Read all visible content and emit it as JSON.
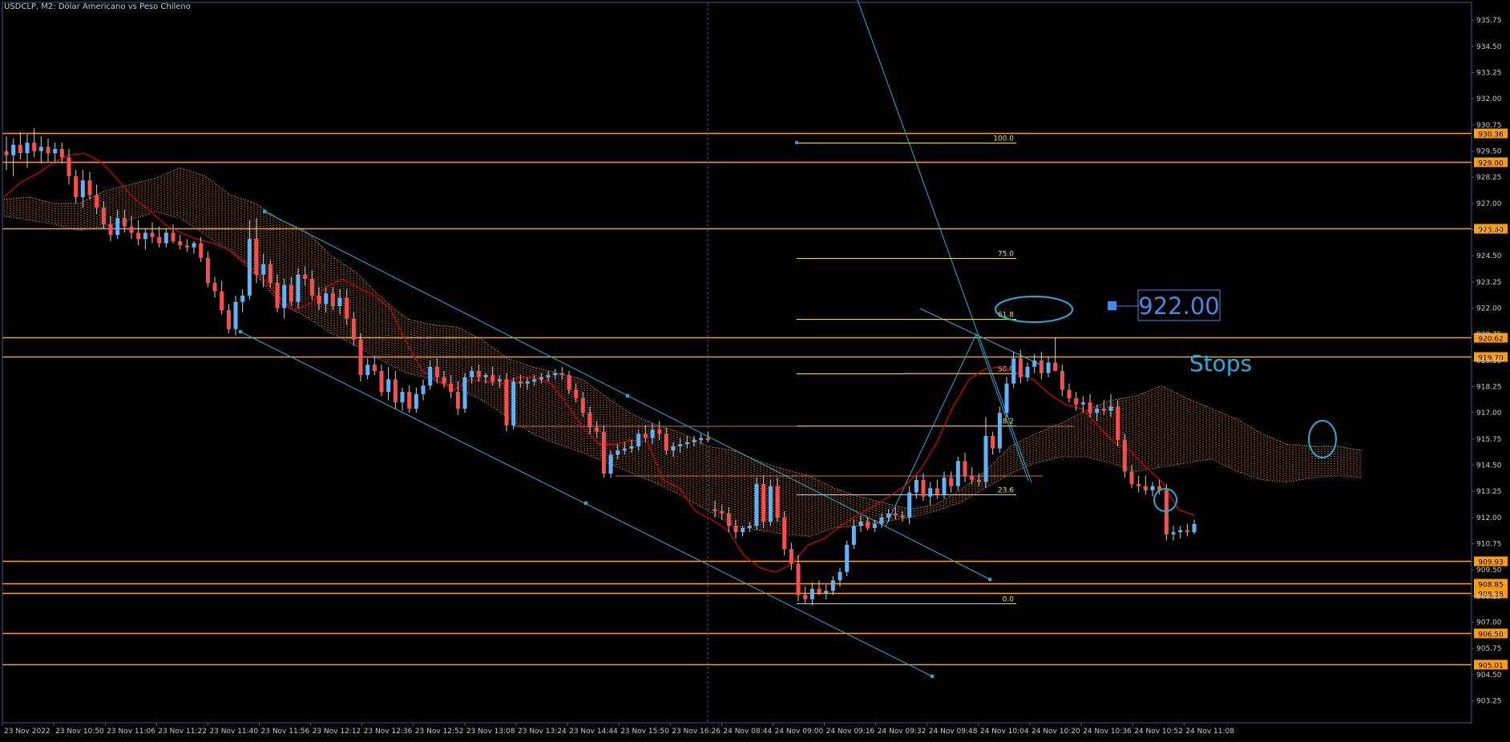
{
  "header": {
    "title": "USDCLP, M2:  Dólar Americano vs Peso Chileno"
  },
  "colors": {
    "background": "#000000",
    "grid_frame": "#3a5a8a",
    "text": "#c8c8c8",
    "bull": "#5ab4ff",
    "bear": "#ff4d4d",
    "tenkan": "#d40000",
    "level": "#ff9e00",
    "fib": "#e8e800",
    "channel": "#1ab0e0",
    "cloud": "#d08a4a",
    "price_tag_bg": "#ff9e00"
  },
  "annotations": {
    "big_price": "922.00",
    "stops": "Stops"
  },
  "chart_data": {
    "type": "candlestick",
    "symbol": "USDCLP",
    "timeframe": "M2",
    "y_axis_ticks": [
      "935.75",
      "934.50",
      "933.25",
      "932.00",
      "930.75",
      "929.50",
      "928.25",
      "927.00",
      "925.75",
      "924.50",
      "923.25",
      "922.00",
      "920.75",
      "919.50",
      "918.25",
      "917.00",
      "915.75",
      "914.50",
      "913.25",
      "912.00",
      "910.75",
      "909.50",
      "908.25",
      "907.00",
      "905.75",
      "904.50",
      "903.25"
    ],
    "ylim": [
      902.2,
      936.6
    ],
    "x_axis_labels": [
      "23 Nov 2022",
      "23 Nov 10:50",
      "23 Nov 11:06",
      "23 Nov 11:22",
      "23 Nov 11:40",
      "23 Nov 11:56",
      "23 Nov 12:12",
      "23 Nov 12:36",
      "23 Nov 12:52",
      "23 Nov 13:08",
      "23 Nov 13:24",
      "23 Nov 14:44",
      "23 Nov 15:50",
      "23 Nov 16:26",
      "24 Nov 08:44",
      "24 Nov 09:00",
      "24 Nov 09:16",
      "24 Nov 09:32",
      "24 Nov 09:48",
      "24 Nov 10:04",
      "24 Nov 10:20",
      "24 Nov 10:36",
      "24 Nov 10:52",
      "24 Nov 11:08"
    ],
    "horizontal_levels": [
      "930.36",
      "929.00",
      "925.80",
      "920.62",
      "919.70",
      "909.93",
      "908.85",
      "908.38",
      "906.50",
      "905.01"
    ],
    "fibonacci": [
      {
        "label": "100.0",
        "price": 929.9
      },
      {
        "label": "75.0",
        "price": 924.4
      },
      {
        "label": "61.8",
        "price": 921.5
      },
      {
        "label": "50.0",
        "price": 918.9
      },
      {
        "label": "38.2",
        "price": 916.4
      },
      {
        "label": "23.6",
        "price": 913.1
      },
      {
        "label": "0.0",
        "price": 907.9
      }
    ],
    "candles": [
      [
        929.5,
        930.2,
        928.6,
        929.3
      ],
      [
        929.3,
        930.1,
        928.3,
        929.8
      ],
      [
        929.8,
        930.4,
        929.1,
        929.4
      ],
      [
        929.4,
        930.3,
        928.7,
        929.9
      ],
      [
        929.9,
        930.6,
        929.2,
        929.5
      ],
      [
        929.5,
        930.2,
        928.9,
        929.7
      ],
      [
        929.7,
        930.1,
        929.0,
        929.4
      ],
      [
        929.4,
        929.9,
        928.9,
        929.6
      ],
      [
        929.6,
        929.9,
        928.9,
        929.2
      ],
      [
        929.2,
        929.6,
        927.9,
        928.3
      ],
      [
        928.3,
        928.6,
        927.0,
        927.3
      ],
      [
        927.3,
        928.6,
        926.8,
        928.1
      ],
      [
        928.1,
        928.5,
        927.2,
        927.4
      ],
      [
        927.4,
        927.9,
        926.5,
        926.8
      ],
      [
        926.8,
        927.1,
        925.8,
        926.0
      ],
      [
        926.0,
        926.4,
        925.2,
        925.5
      ],
      [
        925.5,
        926.7,
        925.3,
        926.3
      ],
      [
        926.3,
        926.7,
        925.6,
        925.9
      ],
      [
        925.9,
        926.4,
        925.3,
        925.6
      ],
      [
        925.6,
        926.2,
        925.0,
        925.3
      ],
      [
        925.3,
        925.8,
        924.8,
        925.6
      ],
      [
        925.6,
        926.1,
        925.1,
        925.4
      ],
      [
        925.4,
        925.9,
        924.9,
        925.1
      ],
      [
        925.1,
        925.8,
        924.9,
        925.6
      ],
      [
        925.6,
        926.0,
        925.1,
        925.2
      ],
      [
        925.2,
        925.5,
        924.8,
        925.0
      ],
      [
        925.0,
        925.3,
        924.7,
        924.9
      ],
      [
        924.9,
        925.2,
        924.6,
        925.1
      ],
      [
        925.1,
        925.4,
        924.2,
        924.4
      ],
      [
        924.4,
        924.7,
        923.0,
        923.2
      ],
      [
        923.2,
        923.5,
        922.5,
        922.8
      ],
      [
        922.8,
        923.3,
        921.7,
        921.9
      ],
      [
        921.9,
        922.2,
        920.8,
        921.0
      ],
      [
        921.0,
        922.6,
        920.7,
        922.3
      ],
      [
        922.3,
        922.9,
        921.8,
        922.6
      ],
      [
        922.6,
        926.2,
        922.4,
        925.3
      ],
      [
        925.3,
        926.3,
        923.2,
        923.6
      ],
      [
        923.6,
        924.6,
        923.0,
        924.1
      ],
      [
        924.1,
        924.3,
        923.0,
        923.2
      ],
      [
        923.2,
        923.6,
        921.8,
        922.0
      ],
      [
        922.0,
        923.4,
        921.5,
        923.1
      ],
      [
        923.1,
        923.5,
        922.1,
        922.3
      ],
      [
        922.3,
        923.9,
        922.0,
        923.6
      ],
      [
        923.6,
        924.0,
        923.1,
        923.4
      ],
      [
        923.4,
        923.8,
        922.4,
        922.6
      ],
      [
        922.6,
        923.0,
        921.9,
        922.2
      ],
      [
        922.2,
        923.0,
        921.8,
        922.7
      ],
      [
        922.7,
        923.0,
        921.9,
        922.1
      ],
      [
        922.1,
        922.9,
        921.7,
        922.5
      ],
      [
        922.5,
        922.9,
        921.2,
        921.5
      ],
      [
        921.5,
        921.8,
        920.2,
        920.5
      ],
      [
        920.5,
        920.8,
        918.5,
        918.8
      ],
      [
        918.8,
        919.6,
        918.6,
        919.3
      ],
      [
        919.3,
        919.7,
        918.8,
        919.0
      ],
      [
        919.0,
        919.3,
        917.8,
        918.0
      ],
      [
        918.0,
        919.2,
        917.6,
        918.6
      ],
      [
        918.6,
        919.0,
        917.2,
        917.5
      ],
      [
        917.5,
        918.2,
        917.1,
        918.0
      ],
      [
        918.0,
        918.3,
        917.0,
        917.2
      ],
      [
        917.2,
        918.2,
        917.0,
        917.9
      ],
      [
        917.9,
        918.6,
        917.6,
        918.3
      ],
      [
        918.3,
        919.5,
        918.1,
        919.2
      ],
      [
        919.2,
        919.6,
        918.4,
        918.7
      ],
      [
        918.7,
        919.0,
        918.2,
        918.4
      ],
      [
        918.4,
        918.8,
        917.7,
        918.0
      ],
      [
        918.0,
        918.5,
        916.9,
        917.2
      ],
      [
        917.2,
        918.9,
        917.0,
        918.7
      ],
      [
        918.7,
        919.2,
        918.4,
        919.0
      ],
      [
        919.0,
        919.3,
        918.5,
        918.7
      ],
      [
        918.7,
        918.9,
        918.4,
        918.8
      ],
      [
        918.8,
        919.2,
        918.3,
        918.5
      ],
      [
        918.5,
        918.8,
        918.2,
        918.6
      ],
      [
        918.6,
        918.9,
        916.1,
        916.4
      ],
      [
        916.4,
        918.7,
        916.2,
        918.5
      ],
      [
        918.5,
        918.8,
        918.2,
        918.4
      ],
      [
        918.4,
        918.7,
        918.1,
        918.5
      ],
      [
        918.5,
        918.8,
        918.3,
        918.6
      ],
      [
        918.6,
        918.9,
        918.4,
        918.7
      ],
      [
        918.7,
        919.0,
        918.5,
        918.8
      ],
      [
        918.8,
        919.1,
        918.6,
        918.9
      ],
      [
        918.9,
        919.2,
        918.6,
        918.8
      ],
      [
        918.8,
        919.0,
        917.9,
        918.1
      ],
      [
        918.1,
        918.4,
        917.5,
        917.7
      ],
      [
        917.7,
        918.0,
        916.8,
        917.0
      ],
      [
        917.0,
        917.3,
        916.0,
        916.3
      ],
      [
        916.3,
        916.6,
        915.8,
        916.1
      ],
      [
        916.1,
        916.4,
        913.9,
        914.1
      ],
      [
        914.1,
        915.2,
        913.9,
        915.0
      ],
      [
        915.0,
        915.5,
        914.8,
        915.2
      ],
      [
        915.2,
        915.6,
        915.0,
        915.3
      ],
      [
        915.3,
        915.7,
        915.1,
        915.4
      ],
      [
        915.4,
        916.2,
        915.2,
        916.0
      ],
      [
        916.0,
        916.4,
        915.6,
        915.8
      ],
      [
        915.8,
        916.5,
        915.5,
        916.2
      ],
      [
        916.2,
        916.6,
        915.7,
        916.0
      ],
      [
        916.0,
        916.3,
        915.0,
        915.2
      ],
      [
        915.2,
        915.6,
        914.9,
        915.4
      ],
      [
        915.4,
        915.8,
        915.1,
        915.5
      ],
      [
        915.5,
        915.9,
        915.3,
        915.6
      ],
      [
        915.6,
        915.9,
        915.4,
        915.7
      ],
      [
        915.7,
        916.0,
        915.5,
        915.8
      ],
      [
        915.8,
        916.1,
        915.6,
        915.7
      ],
      [
        912.4,
        912.8,
        912.0,
        912.3
      ],
      [
        912.3,
        912.6,
        911.9,
        912.2
      ],
      [
        912.2,
        912.5,
        911.3,
        911.6
      ],
      [
        911.6,
        911.9,
        911.0,
        911.3
      ],
      [
        911.3,
        911.6,
        911.1,
        911.5
      ],
      [
        911.5,
        911.8,
        911.3,
        911.6
      ],
      [
        911.6,
        913.9,
        911.4,
        913.6
      ],
      [
        913.6,
        914.0,
        911.5,
        911.8
      ],
      [
        911.8,
        913.8,
        911.6,
        913.5
      ],
      [
        913.5,
        913.9,
        911.8,
        912.0
      ],
      [
        912.0,
        912.3,
        910.2,
        910.5
      ],
      [
        910.5,
        910.8,
        909.5,
        909.8
      ],
      [
        909.8,
        910.2,
        908.0,
        908.3
      ],
      [
        908.3,
        908.7,
        907.9,
        908.1
      ],
      [
        908.1,
        908.9,
        907.8,
        908.6
      ],
      [
        908.6,
        909.0,
        908.3,
        908.4
      ],
      [
        908.4,
        908.8,
        908.1,
        908.5
      ],
      [
        908.5,
        909.2,
        908.3,
        909.0
      ],
      [
        909.0,
        909.6,
        908.7,
        909.4
      ],
      [
        909.4,
        910.9,
        909.2,
        910.7
      ],
      [
        910.7,
        911.9,
        910.5,
        911.6
      ],
      [
        911.6,
        912.1,
        911.3,
        911.8
      ],
      [
        911.8,
        912.0,
        911.4,
        911.5
      ],
      [
        911.5,
        911.9,
        911.3,
        911.7
      ],
      [
        911.7,
        912.2,
        911.5,
        912.0
      ],
      [
        912.0,
        912.4,
        911.8,
        912.2
      ],
      [
        912.2,
        912.5,
        911.9,
        912.1
      ],
      [
        912.1,
        912.3,
        911.8,
        912.0
      ],
      [
        912.0,
        913.5,
        911.7,
        913.2
      ],
      [
        913.2,
        914.0,
        912.9,
        913.8
      ],
      [
        913.8,
        914.1,
        912.8,
        913.0
      ],
      [
        913.0,
        913.7,
        912.6,
        913.4
      ],
      [
        913.4,
        913.8,
        912.9,
        913.1
      ],
      [
        913.1,
        914.2,
        912.9,
        913.9
      ],
      [
        913.9,
        914.2,
        913.2,
        913.5
      ],
      [
        913.5,
        914.9,
        913.3,
        914.7
      ],
      [
        914.7,
        915.1,
        913.7,
        914.0
      ],
      [
        914.0,
        914.4,
        913.6,
        913.8
      ],
      [
        913.8,
        914.1,
        913.5,
        913.7
      ],
      [
        913.7,
        916.8,
        913.4,
        915.9
      ],
      [
        915.9,
        916.1,
        915.0,
        915.3
      ],
      [
        915.3,
        917.3,
        915.1,
        917.0
      ],
      [
        917.0,
        918.7,
        916.8,
        918.4
      ],
      [
        918.4,
        919.9,
        918.2,
        919.6
      ],
      [
        919.6,
        920.0,
        918.4,
        918.7
      ],
      [
        918.7,
        919.4,
        918.5,
        919.2
      ],
      [
        919.2,
        919.8,
        918.9,
        919.5
      ],
      [
        919.5,
        919.9,
        918.6,
        918.9
      ],
      [
        918.9,
        919.7,
        918.7,
        919.4
      ],
      [
        919.4,
        920.6,
        919.2,
        919.0
      ],
      [
        919.0,
        919.3,
        917.8,
        918.1
      ],
      [
        918.1,
        918.4,
        917.5,
        917.7
      ],
      [
        917.7,
        918.0,
        917.1,
        917.4
      ],
      [
        917.4,
        917.8,
        917.0,
        917.5
      ],
      [
        917.5,
        917.9,
        916.8,
        917.0
      ],
      [
        917.0,
        917.4,
        916.6,
        917.2
      ],
      [
        917.2,
        917.6,
        916.9,
        917.1
      ],
      [
        917.1,
        917.9,
        916.8,
        917.3
      ],
      [
        917.3,
        917.6,
        915.4,
        915.7
      ],
      [
        915.7,
        916.0,
        913.9,
        914.2
      ],
      [
        914.2,
        914.5,
        913.4,
        913.6
      ],
      [
        913.6,
        914.0,
        913.2,
        913.5
      ],
      [
        913.5,
        914.0,
        913.1,
        913.3
      ],
      [
        913.3,
        913.7,
        913.0,
        913.5
      ],
      [
        913.5,
        913.8,
        913.1,
        913.3
      ],
      [
        913.3,
        913.6,
        910.9,
        911.2
      ],
      [
        911.2,
        911.6,
        910.9,
        911.3
      ],
      [
        911.3,
        911.6,
        911.0,
        911.4
      ],
      [
        911.4,
        911.7,
        911.1,
        911.3
      ],
      [
        911.3,
        911.9,
        911.2,
        911.7
      ]
    ],
    "tenkan": [
      927.3,
      928.0,
      928.4,
      928.9,
      929.3,
      929.4,
      929.0,
      928.2,
      927.3,
      926.7,
      926.0,
      925.6,
      925.3,
      925.1,
      924.8,
      924.2,
      923.5,
      922.6,
      921.9,
      922.2,
      923.0,
      923.4,
      923.0,
      922.6,
      922.0,
      920.4,
      919.0,
      918.5,
      918.1,
      918.6,
      918.5,
      918.4,
      918.7,
      918.7,
      918.4,
      917.4,
      916.3,
      915.5,
      915.5,
      915.7,
      915.6,
      913.8,
      913.4,
      912.3,
      911.9,
      911.4,
      910.2,
      909.6,
      909.4,
      909.8,
      910.7,
      911.0,
      911.6,
      912.1,
      912.5,
      913.0,
      913.5,
      914.3,
      915.6,
      917.3,
      918.6,
      919.1,
      919.2,
      918.9,
      918.6,
      917.9,
      917.4,
      917.2,
      916.4,
      915.6,
      915.2,
      914.4,
      913.7,
      912.4,
      912.1
    ],
    "tenkan_x_end": 1490,
    "cloud_top": [
      927.2,
      927.3,
      927.0,
      927.0,
      927.6,
      927.9,
      928.2,
      928.7,
      928.3,
      927.4,
      927.0,
      926.2,
      925.7,
      924.5,
      923.7,
      922.5,
      921.5,
      921.2,
      921.1,
      920.5,
      919.6,
      919.2,
      918.9,
      918.6,
      917.7,
      916.9,
      916.4,
      916.0,
      915.4,
      915.2,
      914.7,
      914.3,
      914.0,
      913.4,
      913.0,
      912.7,
      912.4,
      912.6,
      913.3,
      914.2,
      915.4,
      916.0,
      916.5,
      917.1,
      917.6,
      917.8,
      918.3,
      917.7,
      917.2,
      916.7,
      916.0,
      915.5,
      915.4,
      915.4,
      915.2
    ],
    "cloud_bottom": [
      926.4,
      926.2,
      926.0,
      925.7,
      925.9,
      926.2,
      926.6,
      926.3,
      925.5,
      924.7,
      923.6,
      922.2,
      921.6,
      920.8,
      920.2,
      919.5,
      918.9,
      918.6,
      918.2,
      917.6,
      916.8,
      916.0,
      915.5,
      915.1,
      914.6,
      914.1,
      913.6,
      913.0,
      912.3,
      911.6,
      911.4,
      911.2,
      911.1,
      911.5,
      911.6,
      911.8,
      912.0,
      912.3,
      912.7,
      913.4,
      914.1,
      914.6,
      914.9,
      914.9,
      914.6,
      914.2,
      914.4,
      914.6,
      914.8,
      914.2,
      913.8,
      913.7,
      913.9,
      914.0,
      913.9
    ]
  }
}
